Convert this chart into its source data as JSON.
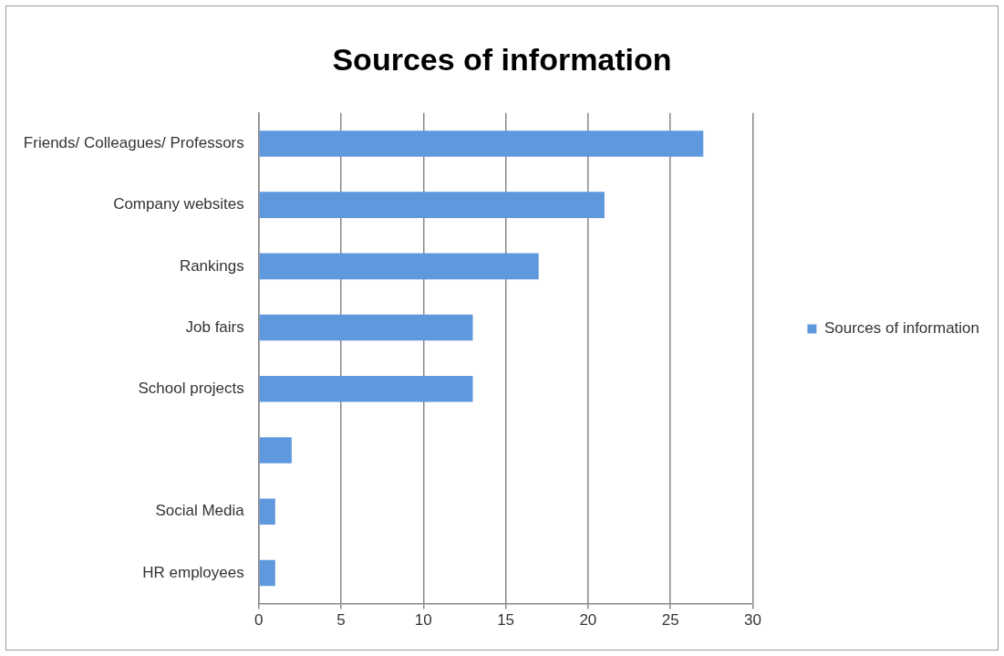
{
  "chart_data": {
    "type": "bar",
    "orientation": "horizontal",
    "title": "Sources of information",
    "categories": [
      "Friends/ Colleagues/ Professors",
      "Company websites",
      "Rankings",
      "Job fairs",
      "School projects",
      null,
      "Social Media",
      "HR employees"
    ],
    "series": [
      {
        "name": "Sources of information",
        "color": "#5f98dc",
        "values": [
          27,
          21,
          17,
          13,
          13,
          2,
          1,
          1
        ]
      }
    ],
    "xlim": [
      0,
      30
    ],
    "xticks": [
      0,
      5,
      10,
      15,
      20,
      25,
      30
    ],
    "grid": "x",
    "legend": "right"
  }
}
